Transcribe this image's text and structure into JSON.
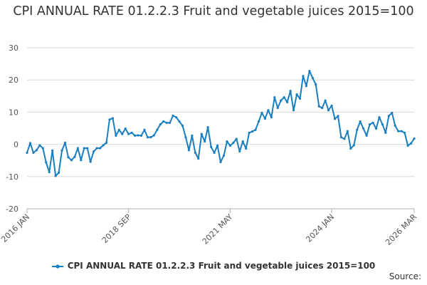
{
  "chart_data": {
    "type": "line",
    "title": "CPI ANNUAL RATE 01.2.2.3 Fruit and vegetable juices 2015=100",
    "xlabel": "",
    "ylabel": "",
    "ylim": [
      -20,
      30
    ],
    "yticks": [
      30,
      20,
      10,
      0,
      -10,
      -20
    ],
    "xticks": [
      {
        "label": "2016 JAN",
        "x": 0
      },
      {
        "label": "2018 SEP",
        "x": 32
      },
      {
        "label": "2021 MAY",
        "x": 64
      },
      {
        "label": "2024 JAN",
        "x": 96
      },
      {
        "label": "2026 MAR",
        "x": 122
      }
    ],
    "grid": true,
    "legend_position": "bottom",
    "series": [
      {
        "name": "CPI ANNUAL RATE 01.2.2.3 Fruit and vegetable juices 2015=100",
        "color": "#1a7fc1",
        "start": "2016 JAN",
        "frequency": "monthly",
        "values": [
          -2.6,
          0.4,
          -2.6,
          -1.8,
          -0.3,
          -1.2,
          -5.6,
          -8.6,
          -1.9,
          -9.8,
          -8.8,
          -1.9,
          0.5,
          -4.0,
          -4.9,
          -3.9,
          -1.2,
          -4.9,
          -1.2,
          -1.2,
          -5.4,
          -2.2,
          -1.2,
          -1.2,
          -0.3,
          0.5,
          7.7,
          8.1,
          2.7,
          4.5,
          3.2,
          4.9,
          3.2,
          3.6,
          2.7,
          2.8,
          2.7,
          4.5,
          2.2,
          2.2,
          2.8,
          4.5,
          6.2,
          7.1,
          6.7,
          6.7,
          8.9,
          8.4,
          7.1,
          5.8,
          2.2,
          -1.8,
          2.7,
          -2.6,
          -4.4,
          3.2,
          0.9,
          5.3,
          -0.8,
          -2.6,
          -0.4,
          -5.5,
          -3.5,
          0.9,
          -0.4,
          0.5,
          1.7,
          -2.2,
          0.9,
          -1.3,
          3.6,
          4.0,
          4.5,
          7.1,
          9.8,
          8.0,
          10.6,
          8.4,
          14.6,
          11.3,
          13.6,
          14.6,
          13.1,
          16.6,
          10.6,
          15.5,
          14.2,
          21.2,
          18.1,
          22.8,
          20.6,
          18.6,
          11.8,
          11.3,
          13.6,
          10.6,
          12.0,
          7.9,
          8.8,
          2.2,
          1.7,
          4.1,
          -1.3,
          -0.3,
          4.5,
          7.1,
          4.9,
          2.7,
          6.2,
          6.7,
          4.9,
          8.4,
          6.2,
          3.6,
          8.8,
          9.8,
          5.8,
          4.1,
          4.1,
          3.6,
          -0.4,
          0.3,
          1.8
        ]
      }
    ],
    "source_label": "Source:"
  }
}
